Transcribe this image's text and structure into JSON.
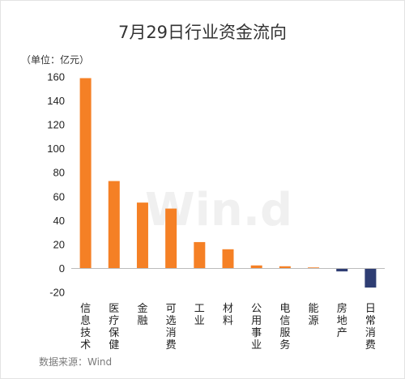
{
  "chart_data": {
    "type": "bar",
    "title": "7月29日行业资金流向",
    "unit_label": "（单位：亿元）",
    "categories": [
      "信息技术",
      "医疗保健",
      "金融",
      "可选消费",
      "工业",
      "材料",
      "公用事业",
      "电信服务",
      "能源",
      "房地产",
      "日常消费"
    ],
    "values": [
      159,
      73,
      55,
      50,
      22,
      16,
      2.5,
      1.8,
      0.8,
      -2.5,
      -16
    ],
    "ylim": [
      -20,
      160
    ],
    "yticks": [
      -20,
      0,
      20,
      40,
      60,
      80,
      100,
      120,
      140,
      160
    ],
    "grid": false,
    "colors": {
      "positive": "#F58025",
      "negative": "#2E3D73"
    },
    "source": "数据来源：Wind",
    "watermark": "Win.d"
  }
}
